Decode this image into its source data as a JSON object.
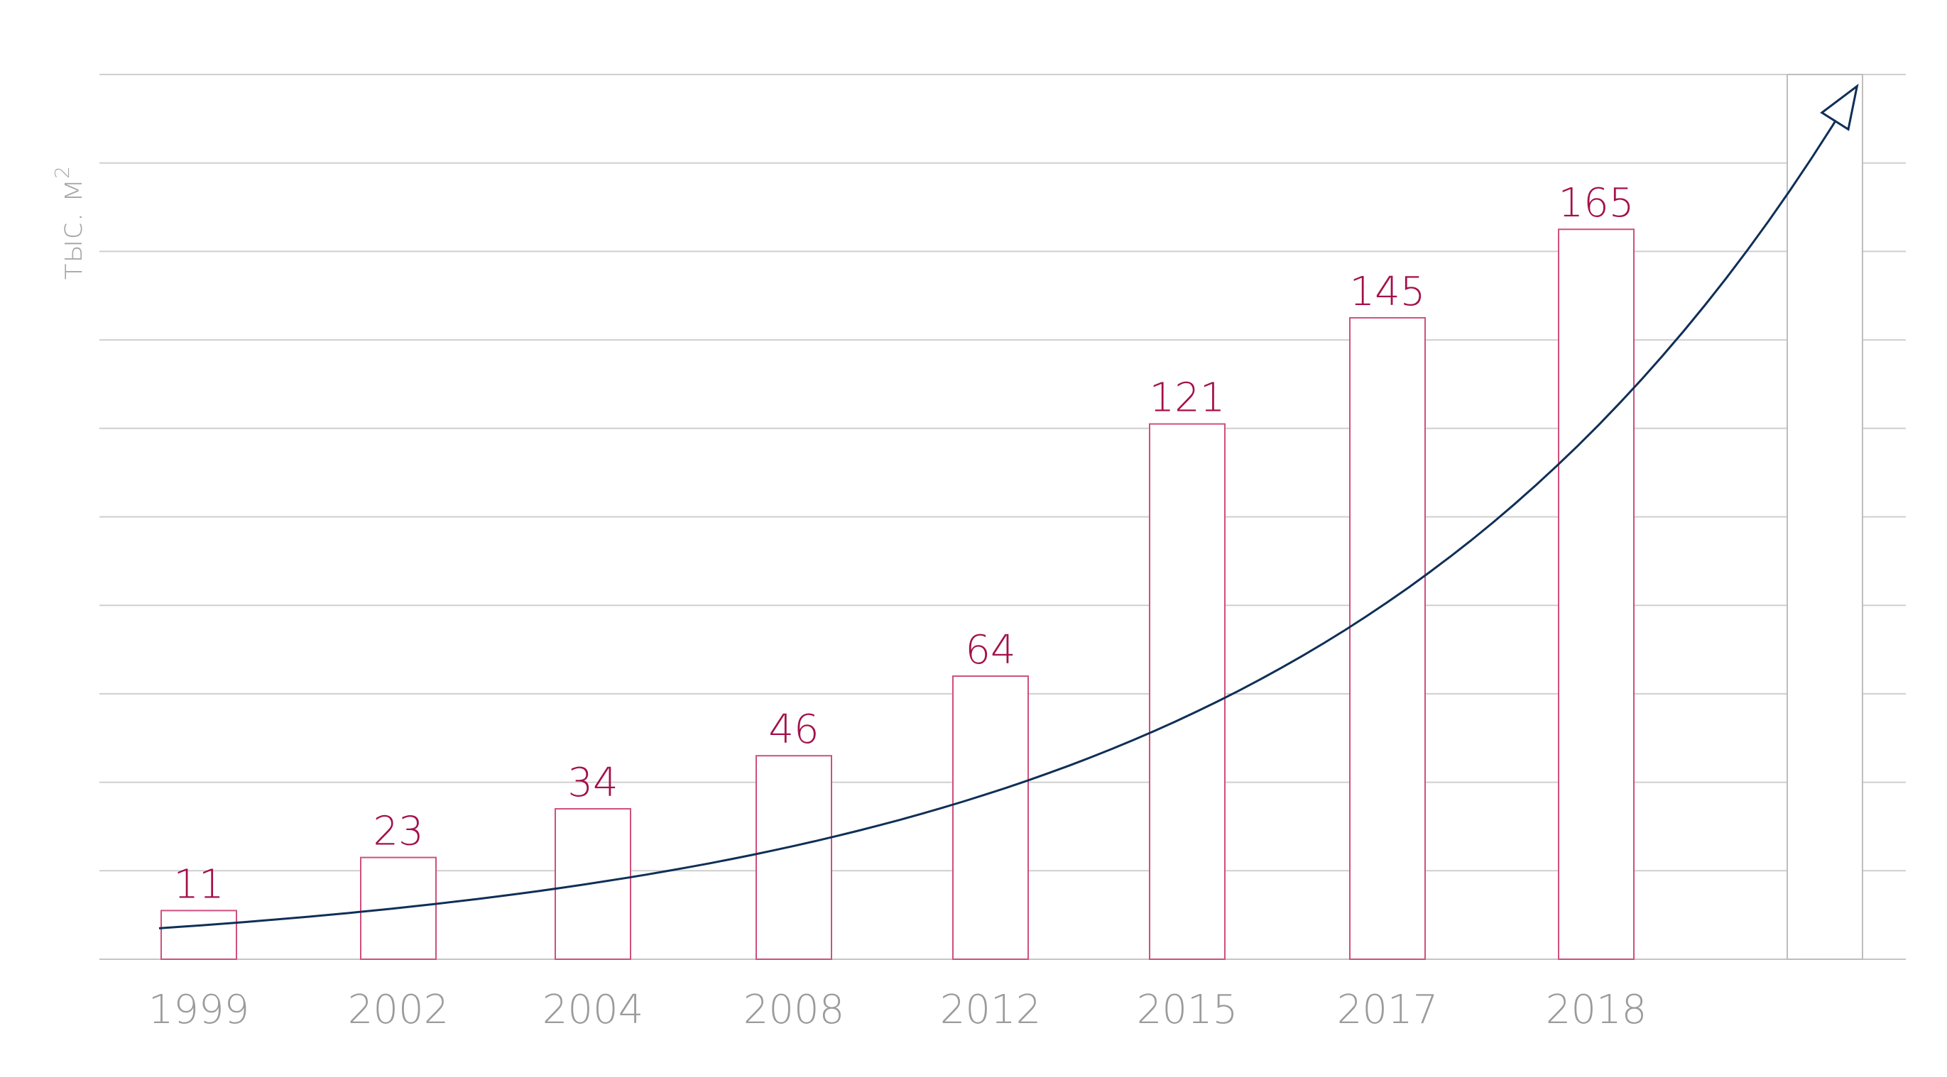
{
  "chart_data": {
    "type": "bar",
    "title": "",
    "xlabel": "",
    "ylabel": "тыс. м",
    "ylabel_superscript": "2",
    "categories": [
      "1999",
      "2002",
      "2004",
      "2008",
      "2012",
      "2015",
      "2017",
      "2018",
      ""
    ],
    "values": [
      11,
      23,
      34,
      46,
      64,
      121,
      145,
      165,
      200
    ],
    "value_labels": [
      "11",
      "23",
      "34",
      "46",
      "64",
      "121",
      "145",
      "165",
      ""
    ],
    "ylim": [
      0,
      200
    ],
    "grid_lines": 10,
    "grid": true,
    "legend": "none",
    "trend": {
      "type": "exponential-arrow",
      "from_value": 7,
      "to_value": 196
    },
    "colors": {
      "bar_stroke": "#cf4f7e",
      "projection_stroke": "#bdbdbd",
      "value_label": "#a3104a",
      "tick_label": "#9b9b9b",
      "y_label": "#a8a8a8",
      "grid": "#cfcfcf",
      "trend": "#0f2f57"
    }
  }
}
